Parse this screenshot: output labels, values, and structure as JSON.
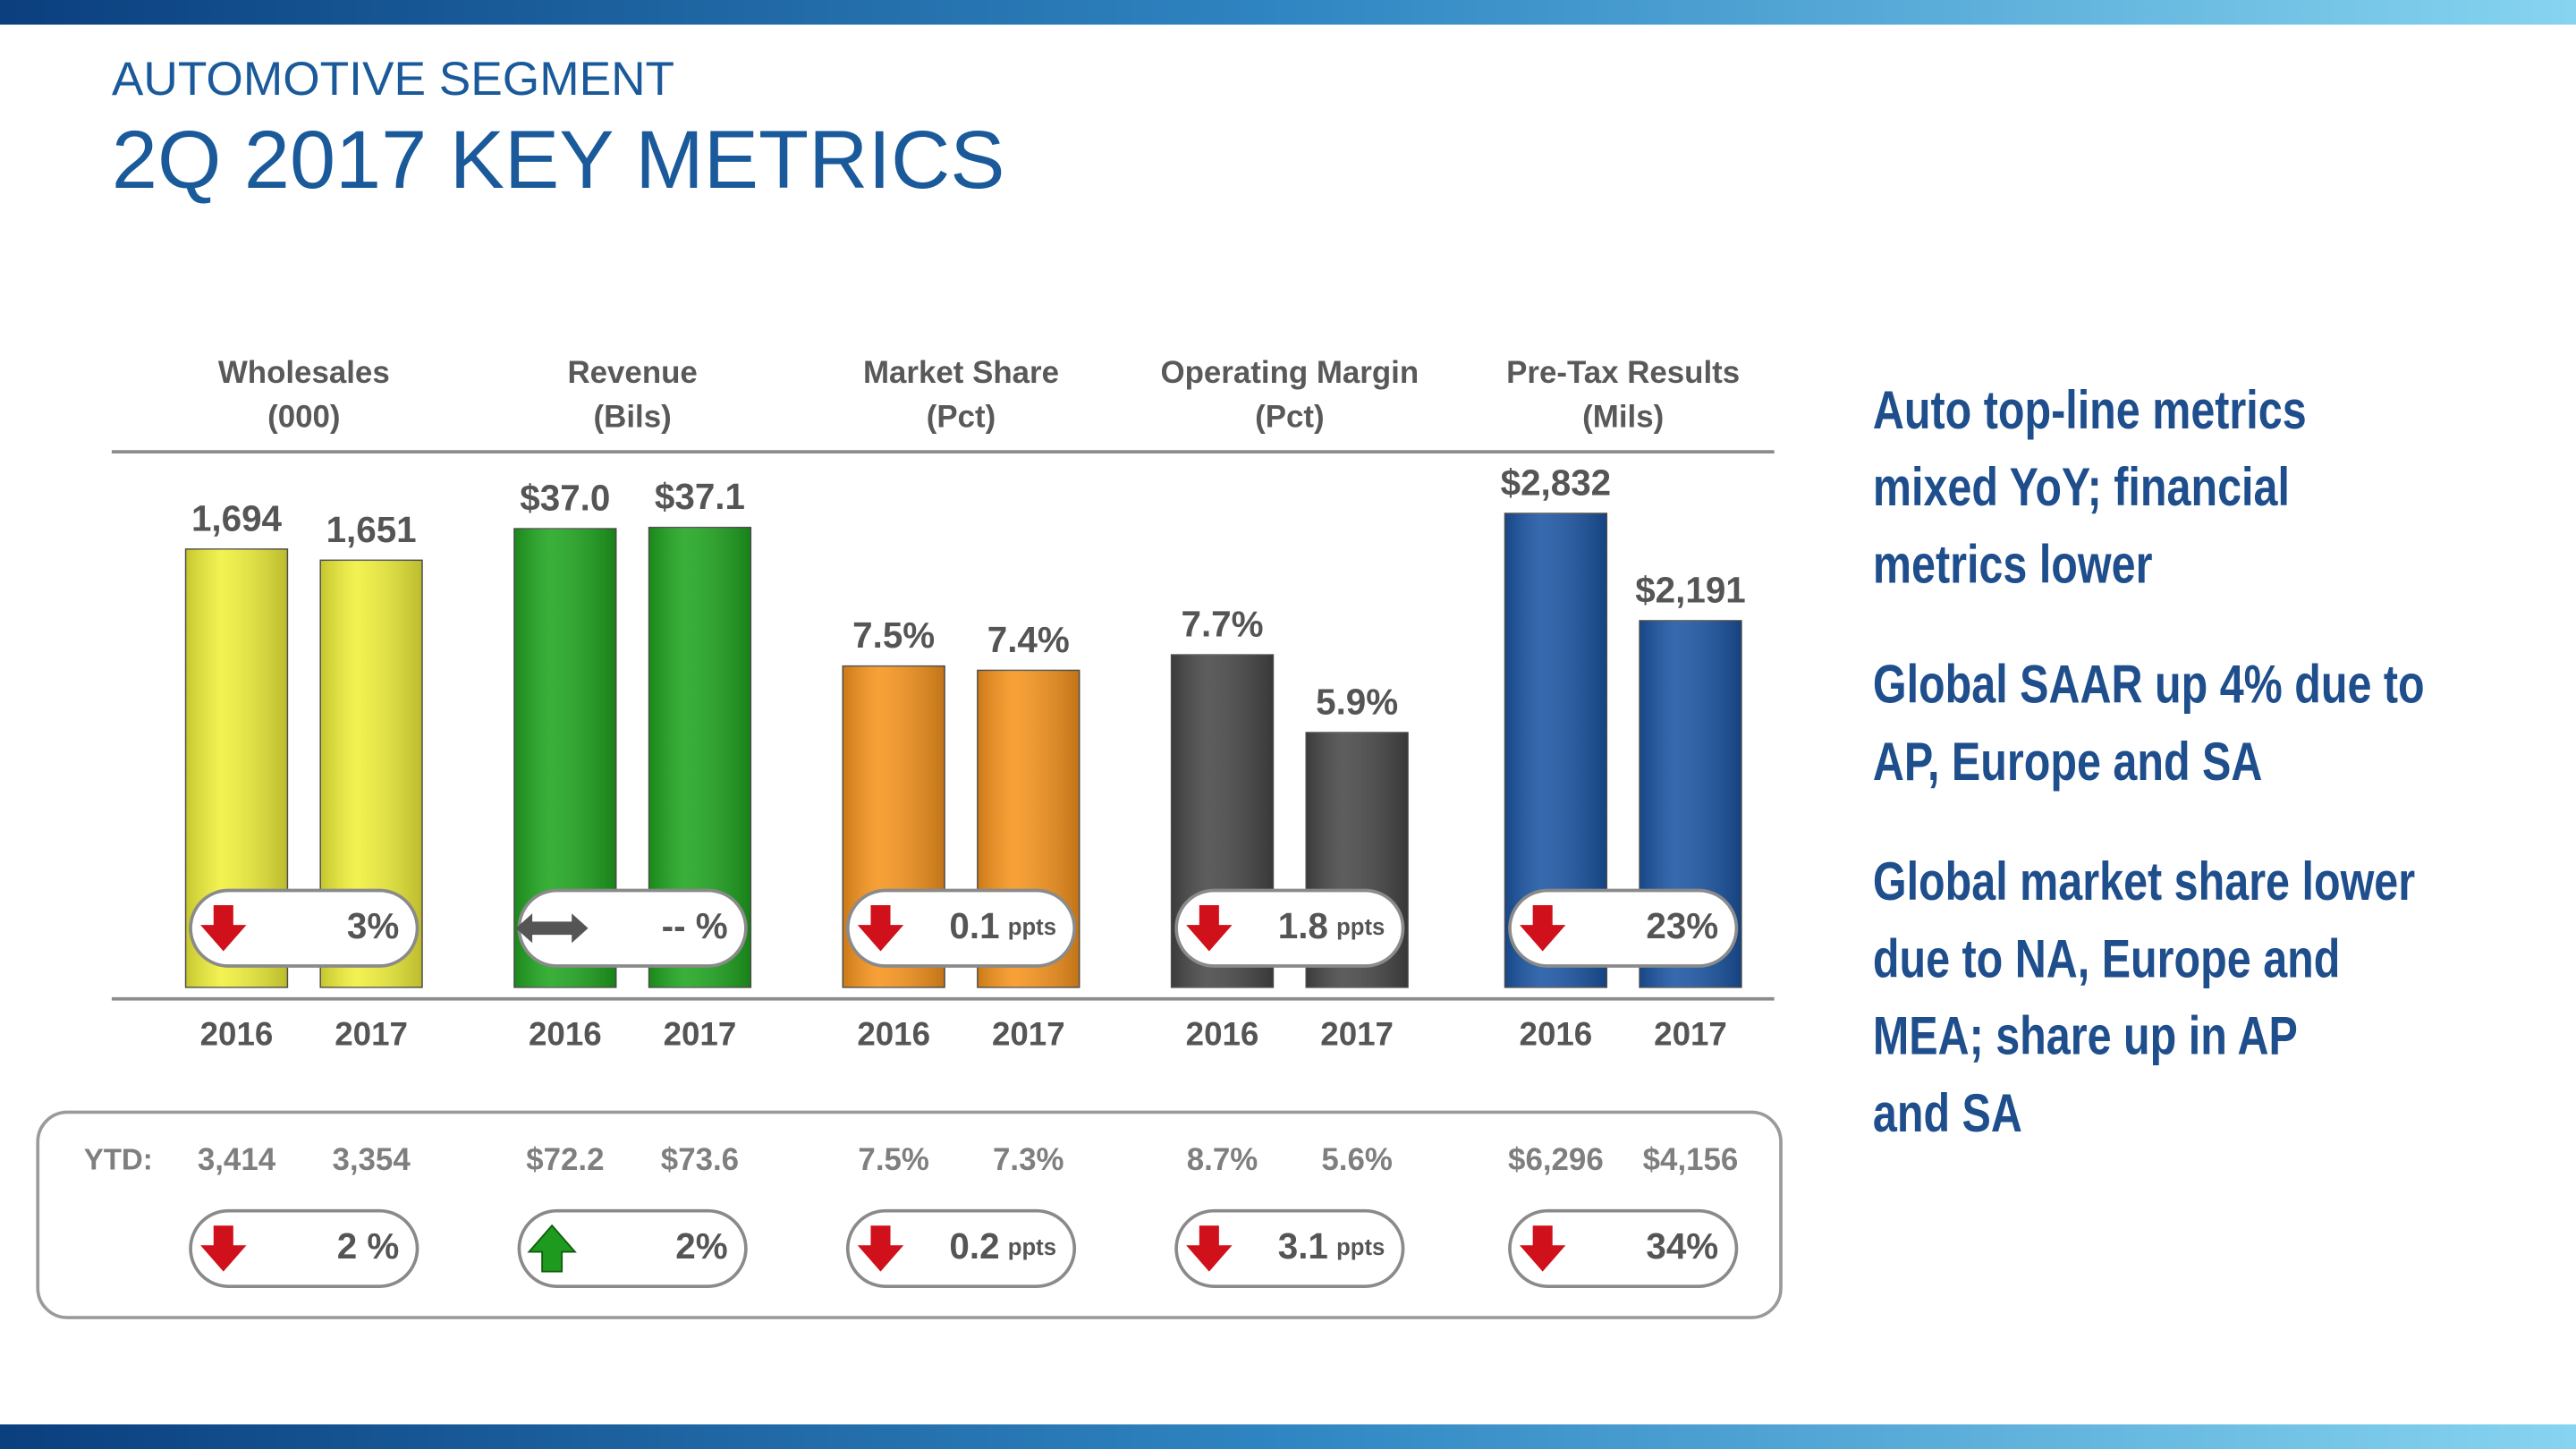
{
  "header": {
    "subtitle": "AUTOMOTIVE SEGMENT",
    "title": "2Q 2017 KEY METRICS"
  },
  "chart_data": [
    {
      "type": "bar",
      "title": "Wholesales",
      "subtitle": "(000)",
      "categories": [
        "2016",
        "2017"
      ],
      "values": [
        1694,
        1651
      ],
      "value_labels": [
        "1,694",
        "1,651"
      ],
      "color": "#f0f03a",
      "ylim": [
        0,
        2070
      ],
      "change": {
        "direction": "down",
        "text": "3%"
      }
    },
    {
      "type": "bar",
      "title": "Revenue",
      "subtitle": "(Bils)",
      "categories": [
        "2016",
        "2017"
      ],
      "values": [
        37.0,
        37.1
      ],
      "value_labels": [
        "$37.0",
        "$37.1"
      ],
      "color": "#1fa51f",
      "ylim": [
        0,
        43.2
      ],
      "change": {
        "direction": "flat",
        "text": "-- %"
      }
    },
    {
      "type": "bar",
      "title": "Market Share",
      "subtitle": "(Pct)",
      "categories": [
        "2016",
        "2017"
      ],
      "values": [
        7.5,
        7.4
      ],
      "value_labels": [
        "7.5%",
        "7.4%"
      ],
      "color": "#f7941d",
      "ylim": [
        0,
        12.5
      ],
      "change": {
        "direction": "down",
        "text": "0.1",
        "unit": "ppts"
      }
    },
    {
      "type": "bar",
      "title": "Operating Margin",
      "subtitle": "(Pct)",
      "categories": [
        "2016",
        "2017"
      ],
      "values": [
        7.7,
        5.9
      ],
      "value_labels": [
        "7.7%",
        "5.9%"
      ],
      "color": "#474747",
      "ylim": [
        0,
        12.4
      ],
      "change": {
        "direction": "down",
        "text": "1.8",
        "unit": "ppts"
      }
    },
    {
      "type": "bar",
      "title": "Pre-Tax Results",
      "subtitle": "(Mils)",
      "categories": [
        "2016",
        "2017"
      ],
      "values": [
        2832,
        2191
      ],
      "value_labels": [
        "$2,832",
        "$2,191"
      ],
      "color": "#1b55a3",
      "ylim": [
        0,
        3200
      ],
      "change": {
        "direction": "down",
        "text": "23%"
      }
    }
  ],
  "ytd": {
    "label": "YTD:",
    "items": [
      {
        "values": [
          "3,414",
          "3,354"
        ],
        "change": {
          "direction": "down",
          "text": "2 %"
        }
      },
      {
        "values": [
          "$72.2",
          "$73.6"
        ],
        "change": {
          "direction": "up",
          "text": "2%"
        }
      },
      {
        "values": [
          "7.5%",
          "7.3%"
        ],
        "change": {
          "direction": "down",
          "text": "0.2",
          "unit": "ppts"
        }
      },
      {
        "values": [
          "8.7%",
          "5.6%"
        ],
        "change": {
          "direction": "down",
          "text": "3.1",
          "unit": "ppts"
        }
      },
      {
        "values": [
          "$6,296",
          "$4,156"
        ],
        "change": {
          "direction": "down",
          "text": "34%"
        }
      }
    ]
  },
  "bullets": [
    [
      "Auto top-line metrics",
      "mixed YoY; financial",
      "metrics lower"
    ],
    [
      "Global SAAR up 4% due to",
      "AP, Europe and SA"
    ],
    [
      "Global market share lower",
      "due to NA, Europe and",
      "MEA; share up in AP",
      "and SA"
    ]
  ]
}
